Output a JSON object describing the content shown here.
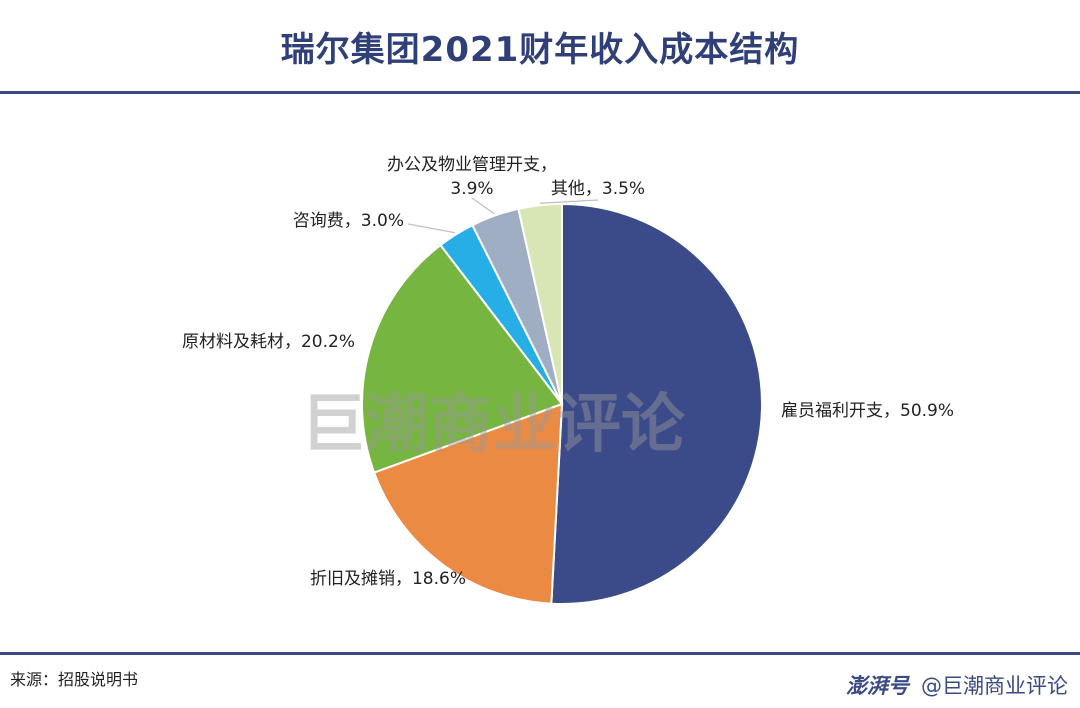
{
  "header": {
    "title": "瑞尔集团2021财年收入成本结构"
  },
  "chart_data": {
    "type": "pie",
    "start": "12-o'clock",
    "direction": "clockwise",
    "slices": [
      {
        "label": "雇员福利开支",
        "value": 50.9,
        "display": "雇员福利开支，50.9%",
        "color": "#3b4a89"
      },
      {
        "label": "折旧及摊销",
        "value": 18.6,
        "display": "折旧及摊销，18.6%",
        "color": "#eb8a42"
      },
      {
        "label": "原材料及耗材",
        "value": 20.2,
        "display": "原材料及耗材，20.2%",
        "color": "#76b53f"
      },
      {
        "label": "咨询费",
        "value": 3.0,
        "display": "咨询费，3.0%",
        "color": "#27aee6"
      },
      {
        "label": "办公及物业管理开支",
        "value": 3.9,
        "display_lines": [
          "办公及物业管理开支，",
          "3.9%"
        ],
        "color": "#a0aec4"
      },
      {
        "label": "其他",
        "value": 3.5,
        "display": "其他，3.5%",
        "color": "#d8e6b3"
      }
    ]
  },
  "watermark": "巨潮商业评论",
  "footer": {
    "source": "来源：招股说明书",
    "logo": "澎湃号",
    "account": "@巨潮商业评论"
  }
}
